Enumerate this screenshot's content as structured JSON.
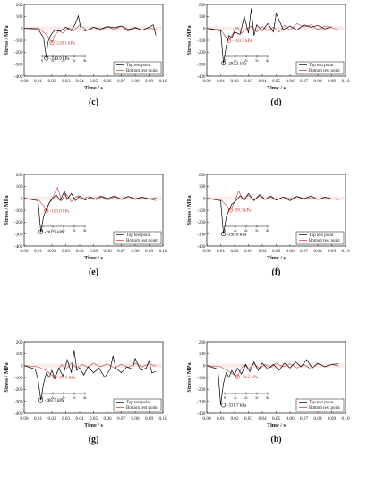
{
  "shared": {
    "ylabel": "Stress / MPa",
    "xlabel": "Time / s",
    "xticks": [
      "0.00",
      "0.01",
      "0.02",
      "0.03",
      "0.04",
      "0.05",
      "0.06",
      "0.07",
      "0.08",
      "0.09",
      "0.10"
    ],
    "yticks": [
      "-400",
      "-300",
      "-200",
      "-100",
      "0",
      "100",
      "200"
    ],
    "legend": [
      "Top test point",
      "Bottom test point"
    ],
    "series_colors": [
      "#000000",
      "#c0392b"
    ],
    "scale_labels": [
      "0",
      "1c",
      "2c",
      "3c",
      "4c"
    ]
  },
  "chart_data": [
    {
      "label": "(c)",
      "type": "line",
      "xlim": [
        0,
        0.1
      ],
      "ylim": [
        -400,
        200
      ],
      "series": [
        {
          "name": "Top test point",
          "x": [
            0,
            0.01,
            0.014,
            0.016,
            0.017,
            0.019,
            0.022,
            0.026,
            0.03,
            0.034,
            0.037,
            0.039,
            0.041,
            0.044,
            0.047,
            0.05,
            0.055,
            0.06,
            0.065,
            0.07,
            0.075,
            0.08,
            0.085,
            0.09,
            0.093,
            0.095
          ],
          "values": [
            0,
            -5,
            -80,
            -249.9,
            -120,
            -60,
            -15,
            -25,
            10,
            -20,
            40,
            105,
            -10,
            -20,
            -10,
            10,
            -5,
            15,
            5,
            20,
            -10,
            5,
            -15,
            10,
            30,
            -60
          ]
        },
        {
          "name": "Bottom test point",
          "x": [
            0,
            0.01,
            0.016,
            0.019,
            0.02,
            0.022,
            0.025,
            0.028,
            0.032,
            0.036,
            0.04,
            0.045,
            0.05,
            0.055,
            0.06,
            0.065,
            0.07,
            0.075,
            0.08,
            0.085,
            0.09,
            0.095
          ],
          "values": [
            0,
            5,
            -50,
            -100,
            -120.1,
            -60,
            -20,
            -40,
            5,
            -20,
            30,
            -15,
            10,
            -20,
            15,
            -10,
            20,
            -25,
            10,
            -15,
            5,
            -10
          ]
        }
      ],
      "annotations": [
        {
          "text": "-120.1 kPa",
          "x": 0.02,
          "y": -120.1,
          "color": "#c0392b"
        },
        {
          "text": "-249.9 kPa",
          "x": 0.016,
          "y": -249.9,
          "color": "#000000"
        }
      ]
    },
    {
      "label": "(d)",
      "type": "line",
      "xlim": [
        0,
        0.1
      ],
      "ylim": [
        -400,
        200
      ],
      "series": [
        {
          "name": "Top test point",
          "x": [
            0,
            0.01,
            0.012,
            0.014,
            0.016,
            0.018,
            0.02,
            0.024,
            0.027,
            0.03,
            0.032,
            0.034,
            0.036,
            0.04,
            0.044,
            0.048,
            0.05,
            0.055,
            0.06,
            0.065,
            0.07,
            0.075,
            0.08,
            0.085,
            0.09
          ],
          "values": [
            0,
            -20,
            -292.2,
            -150,
            -60,
            -80,
            -30,
            -50,
            100,
            -40,
            165,
            -60,
            30,
            -20,
            40,
            -30,
            125,
            -10,
            20,
            -15,
            30,
            10,
            25,
            -5,
            15
          ]
        },
        {
          "name": "Bottom test point",
          "x": [
            0,
            0.01,
            0.014,
            0.016,
            0.018,
            0.02,
            0.022,
            0.025,
            0.028,
            0.032,
            0.036,
            0.04,
            0.044,
            0.048,
            0.052,
            0.056,
            0.06,
            0.065,
            0.07,
            0.075,
            0.08,
            0.085,
            0.09,
            0.094
          ],
          "values": [
            0,
            -10,
            -80,
            -103.3,
            -60,
            -20,
            10,
            -40,
            -10,
            20,
            -30,
            15,
            -20,
            10,
            -30,
            25,
            -15,
            40,
            10,
            30,
            -10,
            20,
            5,
            -10
          ]
        }
      ],
      "annotations": [
        {
          "text": "-103.3 kPa",
          "x": 0.016,
          "y": -103.3,
          "color": "#c0392b"
        },
        {
          "text": "-292.2 kPa",
          "x": 0.012,
          "y": -292.2,
          "color": "#000000"
        }
      ]
    },
    {
      "label": "(e)",
      "type": "line",
      "xlim": [
        0,
        0.1
      ],
      "ylim": [
        -400,
        200
      ],
      "series": [
        {
          "name": "Top test point",
          "x": [
            0,
            0.01,
            0.012,
            0.014,
            0.016,
            0.018,
            0.02,
            0.023,
            0.026,
            0.029,
            0.031,
            0.034,
            0.037,
            0.04,
            0.044,
            0.048,
            0.052,
            0.056,
            0.06,
            0.065,
            0.07,
            0.075,
            0.08,
            0.085,
            0.09,
            0.095
          ],
          "values": [
            0,
            -20,
            -281.3,
            -150,
            -90,
            -40,
            -10,
            30,
            -20,
            60,
            -10,
            40,
            -20,
            20,
            -15,
            10,
            -10,
            15,
            -5,
            20,
            -10,
            15,
            -5,
            10,
            -5,
            0
          ]
        },
        {
          "name": "Bottom test point",
          "x": [
            0,
            0.01,
            0.014,
            0.016,
            0.018,
            0.021,
            0.024,
            0.027,
            0.03,
            0.034,
            0.038,
            0.042,
            0.046,
            0.05,
            0.055,
            0.06,
            0.065,
            0.07,
            0.075,
            0.08,
            0.085,
            0.09,
            0.095
          ],
          "values": [
            0,
            -10,
            -60,
            -103.8,
            -40,
            20,
            90,
            -20,
            40,
            -30,
            20,
            -10,
            15,
            -10,
            20,
            -15,
            10,
            -5,
            15,
            -10,
            5,
            -5,
            -20
          ]
        }
      ],
      "annotations": [
        {
          "text": "-103.8 kPa",
          "x": 0.016,
          "y": -103.8,
          "color": "#c0392b"
        },
        {
          "text": "-281.3 kPa",
          "x": 0.012,
          "y": -281.3,
          "color": "#000000"
        }
      ]
    },
    {
      "label": "(f)",
      "type": "line",
      "xlim": [
        0,
        0.1
      ],
      "ylim": [
        -400,
        200
      ],
      "series": [
        {
          "name": "Top test point",
          "x": [
            0,
            0.01,
            0.012,
            0.014,
            0.016,
            0.018,
            0.021,
            0.024,
            0.027,
            0.03,
            0.034,
            0.038,
            0.042,
            0.046,
            0.05,
            0.055,
            0.06,
            0.065,
            0.07,
            0.075,
            0.08,
            0.085,
            0.09,
            0.095
          ],
          "values": [
            0,
            -20,
            -298.8,
            -160,
            -100,
            -50,
            -20,
            20,
            -15,
            40,
            -20,
            30,
            -10,
            20,
            -15,
            10,
            -20,
            15,
            -5,
            20,
            -10,
            10,
            -5,
            -10
          ]
        },
        {
          "name": "Bottom test point",
          "x": [
            0,
            0.01,
            0.014,
            0.017,
            0.02,
            0.023,
            0.026,
            0.03,
            0.034,
            0.038,
            0.042,
            0.046,
            0.05,
            0.055,
            0.06,
            0.065,
            0.07,
            0.075,
            0.08,
            0.085,
            0.09,
            0.095
          ],
          "values": [
            0,
            -10,
            -60,
            -99.3,
            -30,
            60,
            -10,
            25,
            -15,
            20,
            -10,
            10,
            -15,
            10,
            -5,
            15,
            -10,
            5,
            -10,
            5,
            -5,
            -10
          ]
        }
      ],
      "annotations": [
        {
          "text": "-99.3 kPa",
          "x": 0.017,
          "y": -99.3,
          "color": "#c0392b"
        },
        {
          "text": "-298.8 kPa",
          "x": 0.012,
          "y": -298.8,
          "color": "#000000"
        }
      ]
    },
    {
      "label": "(g)",
      "type": "line",
      "xlim": [
        0,
        0.1
      ],
      "ylim": [
        -400,
        200
      ],
      "series": [
        {
          "name": "Top test point",
          "x": [
            0,
            0.008,
            0.01,
            0.012,
            0.014,
            0.016,
            0.018,
            0.02,
            0.022,
            0.025,
            0.028,
            0.031,
            0.034,
            0.036,
            0.038,
            0.04,
            0.043,
            0.046,
            0.05,
            0.054,
            0.058,
            0.062,
            0.064,
            0.066,
            0.07,
            0.074,
            0.078,
            0.08,
            0.084,
            0.088,
            0.09,
            0.092,
            0.095
          ],
          "values": [
            0,
            -30,
            -120,
            -288.7,
            -150,
            -60,
            -100,
            -40,
            -110,
            -20,
            -90,
            50,
            -60,
            130,
            -40,
            -20,
            -80,
            -10,
            -60,
            -20,
            -100,
            -30,
            80,
            -20,
            -60,
            -10,
            -30,
            60,
            -40,
            -20,
            40,
            -60,
            -50
          ]
        },
        {
          "name": "Bottom test point",
          "x": [
            0,
            0.01,
            0.016,
            0.02,
            0.022,
            0.024,
            0.027,
            0.03,
            0.034,
            0.038,
            0.042,
            0.046,
            0.05,
            0.055,
            0.06,
            0.065,
            0.07,
            0.075,
            0.08,
            0.085,
            0.09,
            0.095
          ],
          "values": [
            0,
            -10,
            -40,
            -80,
            -96.5,
            -50,
            10,
            -30,
            20,
            -20,
            10,
            -15,
            20,
            -10,
            15,
            -20,
            10,
            -15,
            20,
            -10,
            15,
            -5
          ]
        }
      ],
      "annotations": [
        {
          "text": "-96.5 kPa",
          "x": 0.022,
          "y": -96.5,
          "color": "#c0392b"
        },
        {
          "text": "-288.7 kPa",
          "x": 0.012,
          "y": -288.7,
          "color": "#000000"
        }
      ]
    },
    {
      "label": "(h)",
      "type": "line",
      "xlim": [
        0,
        0.1
      ],
      "ylim": [
        -400,
        200
      ],
      "series": [
        {
          "name": "Top test point",
          "x": [
            0,
            0.008,
            0.01,
            0.012,
            0.014,
            0.016,
            0.018,
            0.02,
            0.022,
            0.025,
            0.028,
            0.031,
            0.034,
            0.037,
            0.04,
            0.044,
            0.048,
            0.052,
            0.056,
            0.06,
            0.064,
            0.068,
            0.072,
            0.076,
            0.08,
            0.085,
            0.09,
            0.095
          ],
          "values": [
            0,
            -30,
            -331.7,
            -150,
            -60,
            -100,
            -40,
            -80,
            -20,
            -70,
            10,
            -50,
            30,
            -40,
            20,
            -30,
            10,
            -40,
            20,
            -20,
            30,
            -10,
            50,
            -20,
            20,
            -10,
            10,
            15
          ]
        },
        {
          "name": "Bottom test point",
          "x": [
            0,
            0.01,
            0.016,
            0.02,
            0.022,
            0.024,
            0.027,
            0.03,
            0.034,
            0.038,
            0.042,
            0.046,
            0.05,
            0.055,
            0.06,
            0.065,
            0.07,
            0.075,
            0.08,
            0.085,
            0.09,
            0.095
          ],
          "values": [
            0,
            -10,
            -50,
            -80,
            -94.2,
            -40,
            10,
            -30,
            15,
            -25,
            10,
            -15,
            20,
            -10,
            15,
            -20,
            10,
            -30,
            15,
            -10,
            10,
            -5
          ]
        }
      ],
      "annotations": [
        {
          "text": "-94.2 kPa",
          "x": 0.022,
          "y": -94.2,
          "color": "#c0392b"
        },
        {
          "text": "-331.7 kPa",
          "x": 0.012,
          "y": -331.7,
          "color": "#000000"
        }
      ]
    }
  ]
}
